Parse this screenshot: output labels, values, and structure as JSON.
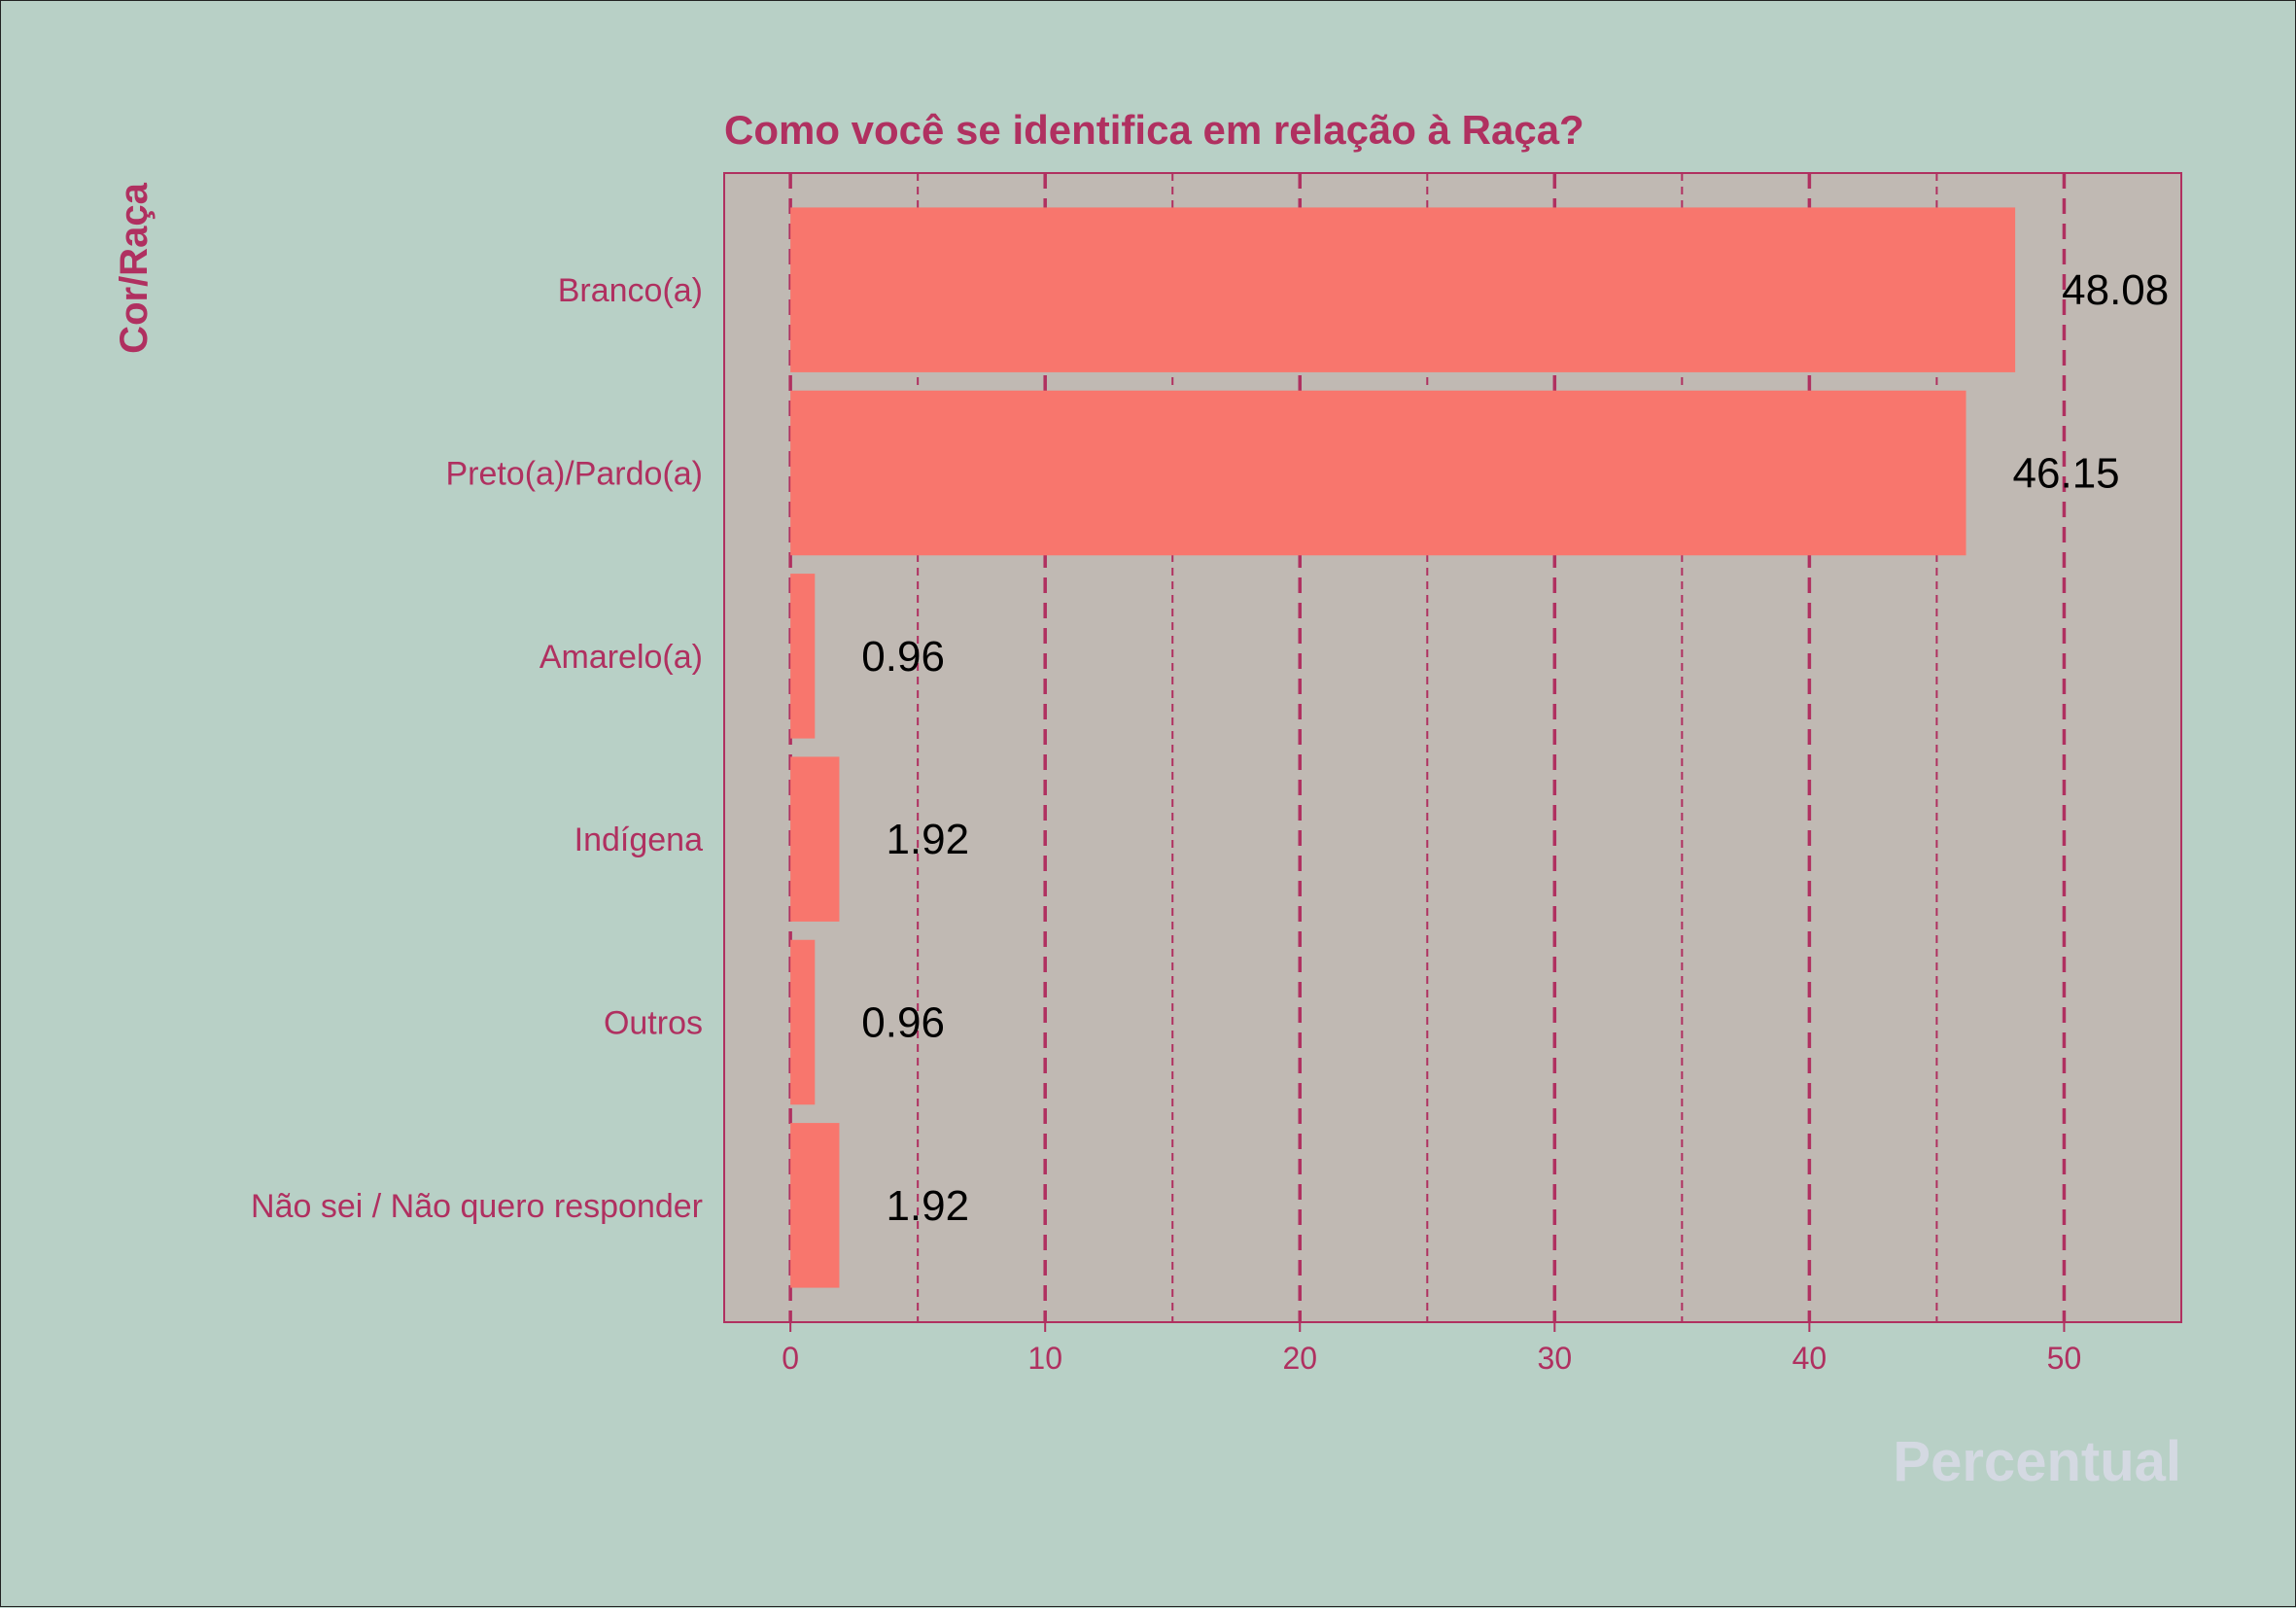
{
  "chart_data": {
    "type": "bar",
    "orientation": "horizontal",
    "title": "Como você se identifica em relação à Raça?",
    "xlabel": "Percentual",
    "ylabel": "Cor/Raça",
    "categories": [
      "Branco(a)",
      "Preto(a)/Pardo(a)",
      "Amarelo(a)",
      "Indígena",
      "Outros",
      "Não sei / Não quero responder"
    ],
    "values": [
      48.08,
      46.15,
      0.96,
      1.92,
      0.96,
      1.92
    ],
    "data_labels": [
      "48.08",
      "46.15",
      "0.96",
      "1.92",
      "0.96",
      "1.92"
    ],
    "xlim": [
      -2.6,
      54.6
    ],
    "xticks": [
      0,
      10,
      20,
      30,
      40,
      50
    ],
    "xtick_labels": [
      "0",
      "10",
      "20",
      "30",
      "40",
      "50"
    ],
    "grid": "vertical dashed",
    "colors": {
      "bar": "#f8766d",
      "panel": "#c0b9b3",
      "background": "#b8d0c6",
      "accent": "#b03060",
      "xlabel": "#d4d9e2",
      "data_label": "#000000"
    }
  }
}
